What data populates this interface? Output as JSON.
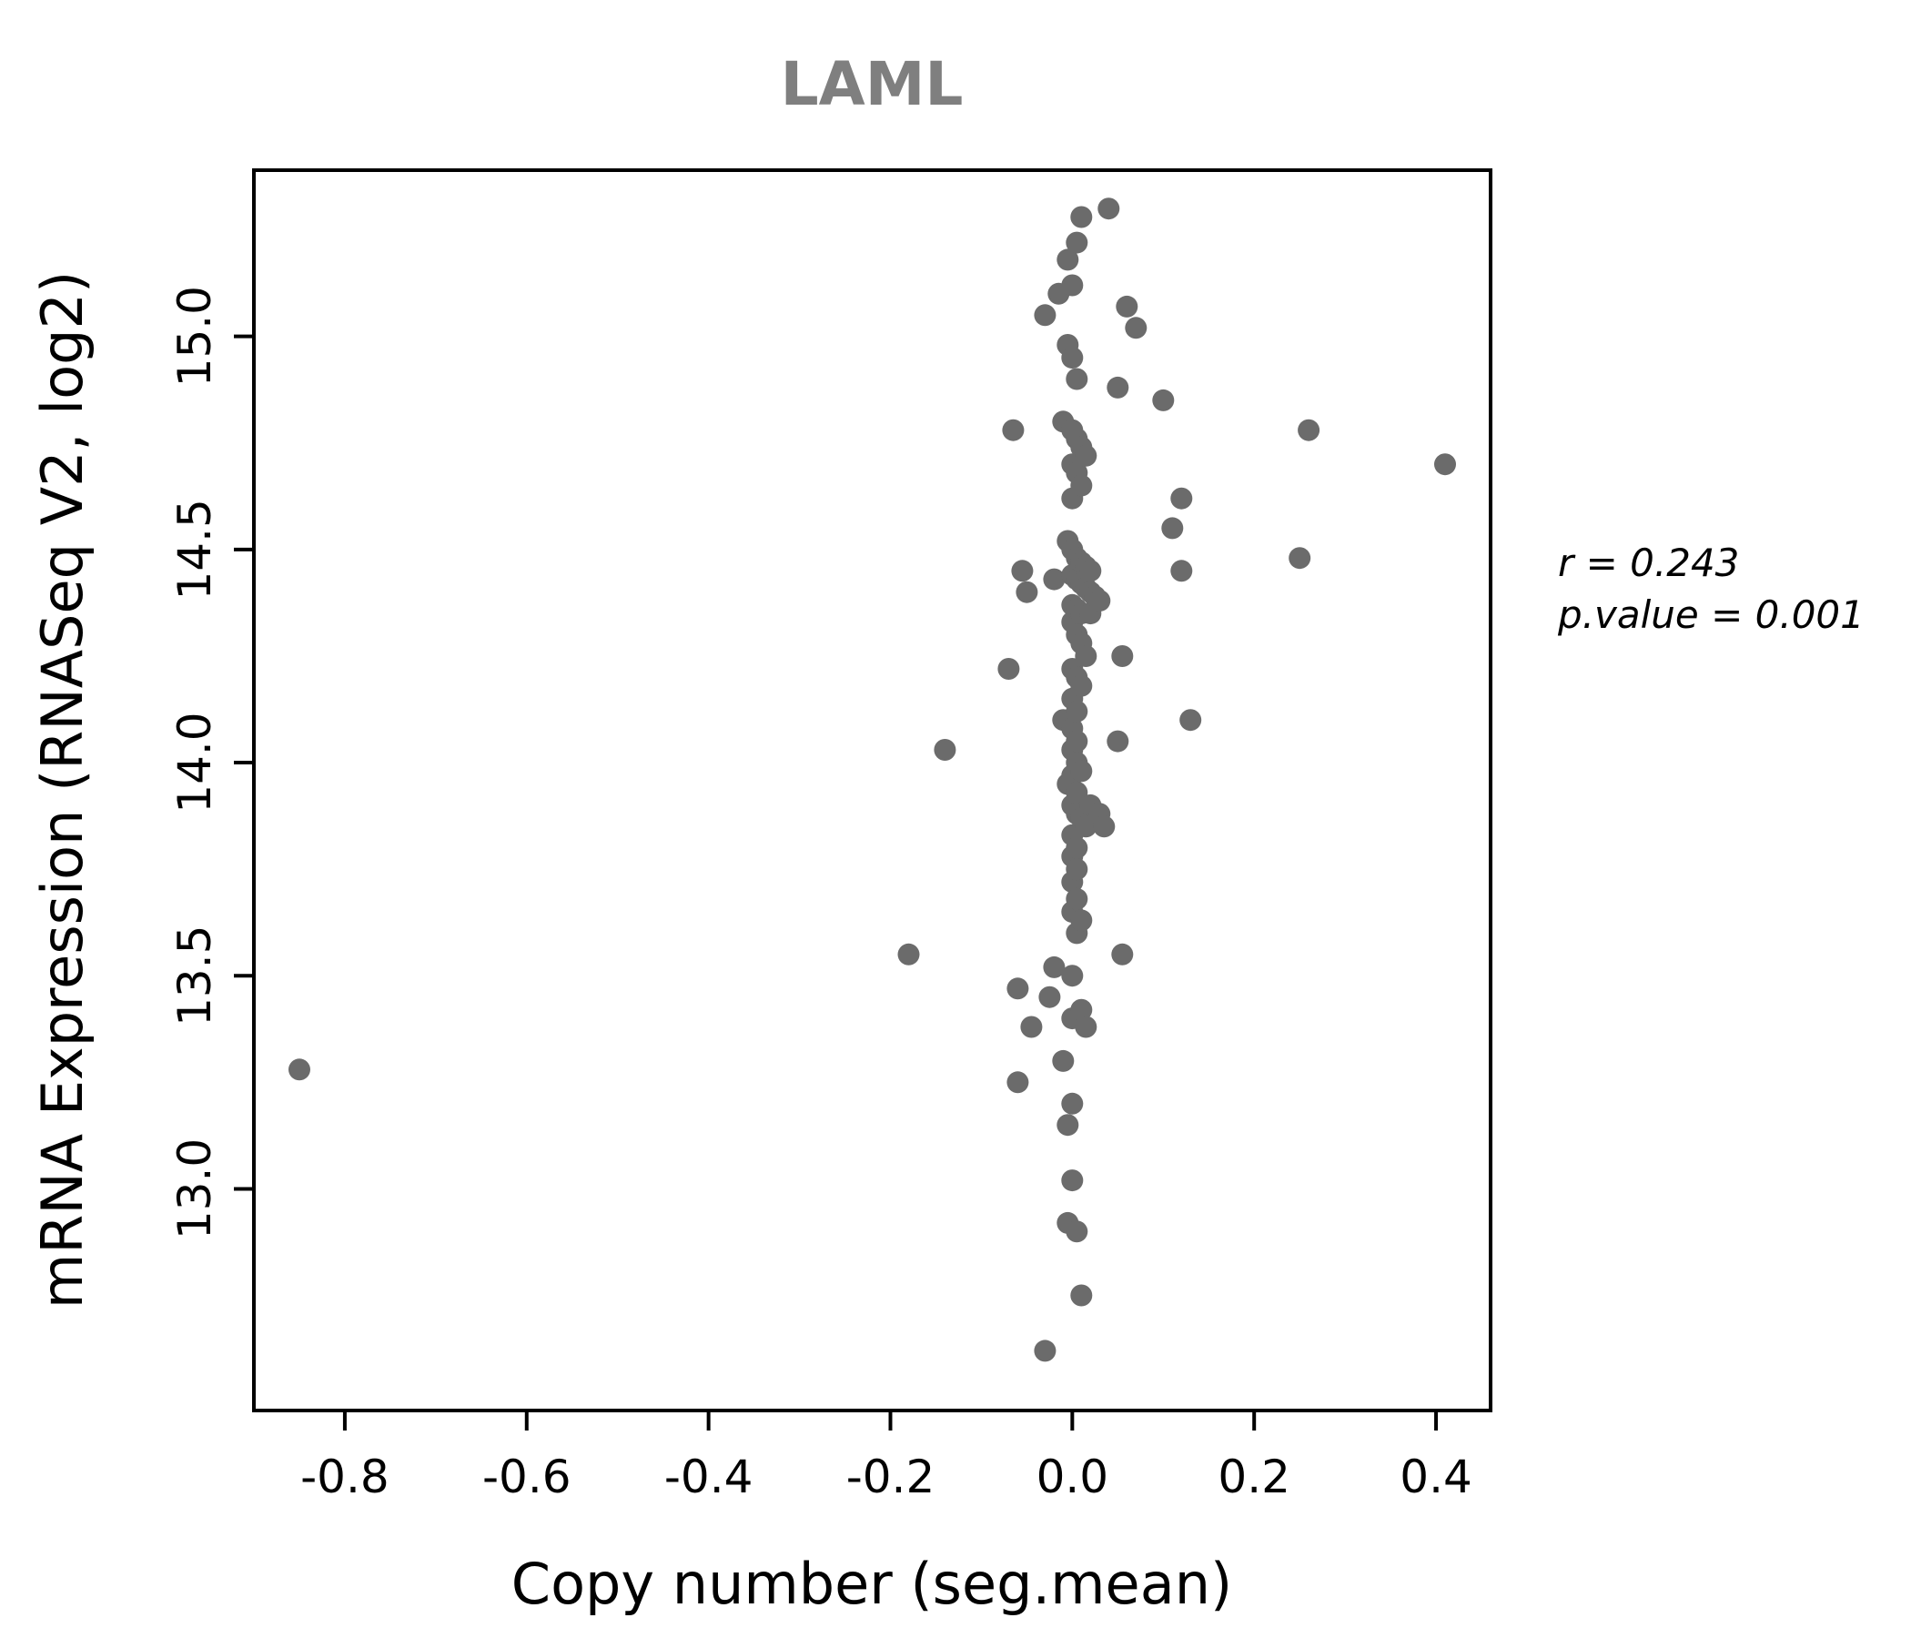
{
  "chart_data": {
    "type": "scatter",
    "title": "LAML",
    "xlabel": "Copy number (seg.mean)",
    "ylabel": "mRNA Expression (RNASeq V2, log2)",
    "xlim": [
      -0.9,
      0.46
    ],
    "ylim": [
      12.48,
      15.39
    ],
    "xticks": [
      -0.8,
      -0.6,
      -0.4,
      -0.2,
      0.0,
      0.2,
      0.4
    ],
    "xtick_labels": [
      "-0.8",
      "-0.6",
      "-0.4",
      "-0.2",
      "0.0",
      "0.2",
      "0.4"
    ],
    "yticks": [
      13.0,
      13.5,
      14.0,
      14.5,
      15.0
    ],
    "ytick_labels": [
      "13.0",
      "13.5",
      "14.0",
      "14.5",
      "15.0"
    ],
    "grid": false,
    "legend": "none",
    "point_color": "#6b6b6b",
    "annotation": {
      "line1": "r = 0.243",
      "line2": "p.value = 0.001"
    },
    "points": [
      [
        -0.85,
        13.28
      ],
      [
        -0.18,
        13.55
      ],
      [
        -0.14,
        14.03
      ],
      [
        -0.07,
        14.22
      ],
      [
        -0.065,
        14.78
      ],
      [
        -0.06,
        13.47
      ],
      [
        -0.06,
        13.25
      ],
      [
        -0.055,
        14.45
      ],
      [
        -0.05,
        14.4
      ],
      [
        -0.045,
        13.38
      ],
      [
        -0.03,
        15.05
      ],
      [
        -0.03,
        12.62
      ],
      [
        -0.025,
        13.45
      ],
      [
        -0.02,
        13.52
      ],
      [
        -0.02,
        14.43
      ],
      [
        -0.015,
        15.1
      ],
      [
        -0.01,
        14.8
      ],
      [
        -0.01,
        13.3
      ],
      [
        -0.01,
        14.1
      ],
      [
        -0.005,
        15.18
      ],
      [
        -0.005,
        14.98
      ],
      [
        -0.005,
        14.52
      ],
      [
        -0.005,
        13.95
      ],
      [
        -0.005,
        13.15
      ],
      [
        -0.005,
        12.92
      ],
      [
        0.0,
        15.12
      ],
      [
        0.0,
        14.95
      ],
      [
        0.0,
        14.78
      ],
      [
        0.0,
        14.7
      ],
      [
        0.0,
        14.62
      ],
      [
        0.0,
        14.5
      ],
      [
        0.0,
        14.44
      ],
      [
        0.0,
        14.37
      ],
      [
        0.0,
        14.33
      ],
      [
        0.0,
        14.22
      ],
      [
        0.0,
        14.15
      ],
      [
        0.0,
        14.08
      ],
      [
        0.0,
        14.03
      ],
      [
        0.0,
        13.97
      ],
      [
        0.0,
        13.9
      ],
      [
        0.0,
        13.83
      ],
      [
        0.0,
        13.78
      ],
      [
        0.0,
        13.72
      ],
      [
        0.0,
        13.65
      ],
      [
        0.0,
        13.5
      ],
      [
        0.0,
        13.4
      ],
      [
        0.0,
        13.2
      ],
      [
        0.0,
        13.02
      ],
      [
        0.005,
        15.22
      ],
      [
        0.005,
        14.9
      ],
      [
        0.005,
        14.76
      ],
      [
        0.005,
        14.68
      ],
      [
        0.005,
        14.48
      ],
      [
        0.005,
        14.43
      ],
      [
        0.005,
        14.36
      ],
      [
        0.005,
        14.3
      ],
      [
        0.005,
        14.2
      ],
      [
        0.005,
        14.12
      ],
      [
        0.005,
        14.05
      ],
      [
        0.005,
        14.0
      ],
      [
        0.005,
        13.93
      ],
      [
        0.005,
        13.88
      ],
      [
        0.005,
        13.8
      ],
      [
        0.005,
        13.75
      ],
      [
        0.005,
        13.68
      ],
      [
        0.005,
        13.6
      ],
      [
        0.005,
        12.9
      ],
      [
        0.01,
        15.28
      ],
      [
        0.01,
        14.74
      ],
      [
        0.01,
        14.65
      ],
      [
        0.01,
        14.47
      ],
      [
        0.01,
        14.42
      ],
      [
        0.01,
        14.35
      ],
      [
        0.01,
        14.28
      ],
      [
        0.01,
        14.18
      ],
      [
        0.01,
        13.98
      ],
      [
        0.01,
        13.87
      ],
      [
        0.01,
        13.63
      ],
      [
        0.01,
        13.42
      ],
      [
        0.01,
        12.75
      ],
      [
        0.015,
        14.72
      ],
      [
        0.015,
        14.46
      ],
      [
        0.015,
        14.41
      ],
      [
        0.015,
        14.25
      ],
      [
        0.015,
        13.85
      ],
      [
        0.015,
        13.38
      ],
      [
        0.02,
        14.45
      ],
      [
        0.02,
        14.4
      ],
      [
        0.02,
        14.35
      ],
      [
        0.02,
        13.9
      ],
      [
        0.025,
        14.39
      ],
      [
        0.03,
        14.38
      ],
      [
        0.03,
        13.88
      ],
      [
        0.035,
        13.85
      ],
      [
        0.04,
        15.3
      ],
      [
        0.05,
        14.88
      ],
      [
        0.05,
        14.05
      ],
      [
        0.055,
        14.25
      ],
      [
        0.055,
        13.55
      ],
      [
        0.06,
        15.07
      ],
      [
        0.07,
        15.02
      ],
      [
        0.1,
        14.85
      ],
      [
        0.11,
        14.55
      ],
      [
        0.12,
        14.62
      ],
      [
        0.12,
        14.45
      ],
      [
        0.13,
        14.1
      ],
      [
        0.25,
        14.48
      ],
      [
        0.26,
        14.78
      ],
      [
        0.41,
        14.7
      ]
    ]
  },
  "layout_note": {
    "r_value": "0.243",
    "p_value": "0.001"
  }
}
